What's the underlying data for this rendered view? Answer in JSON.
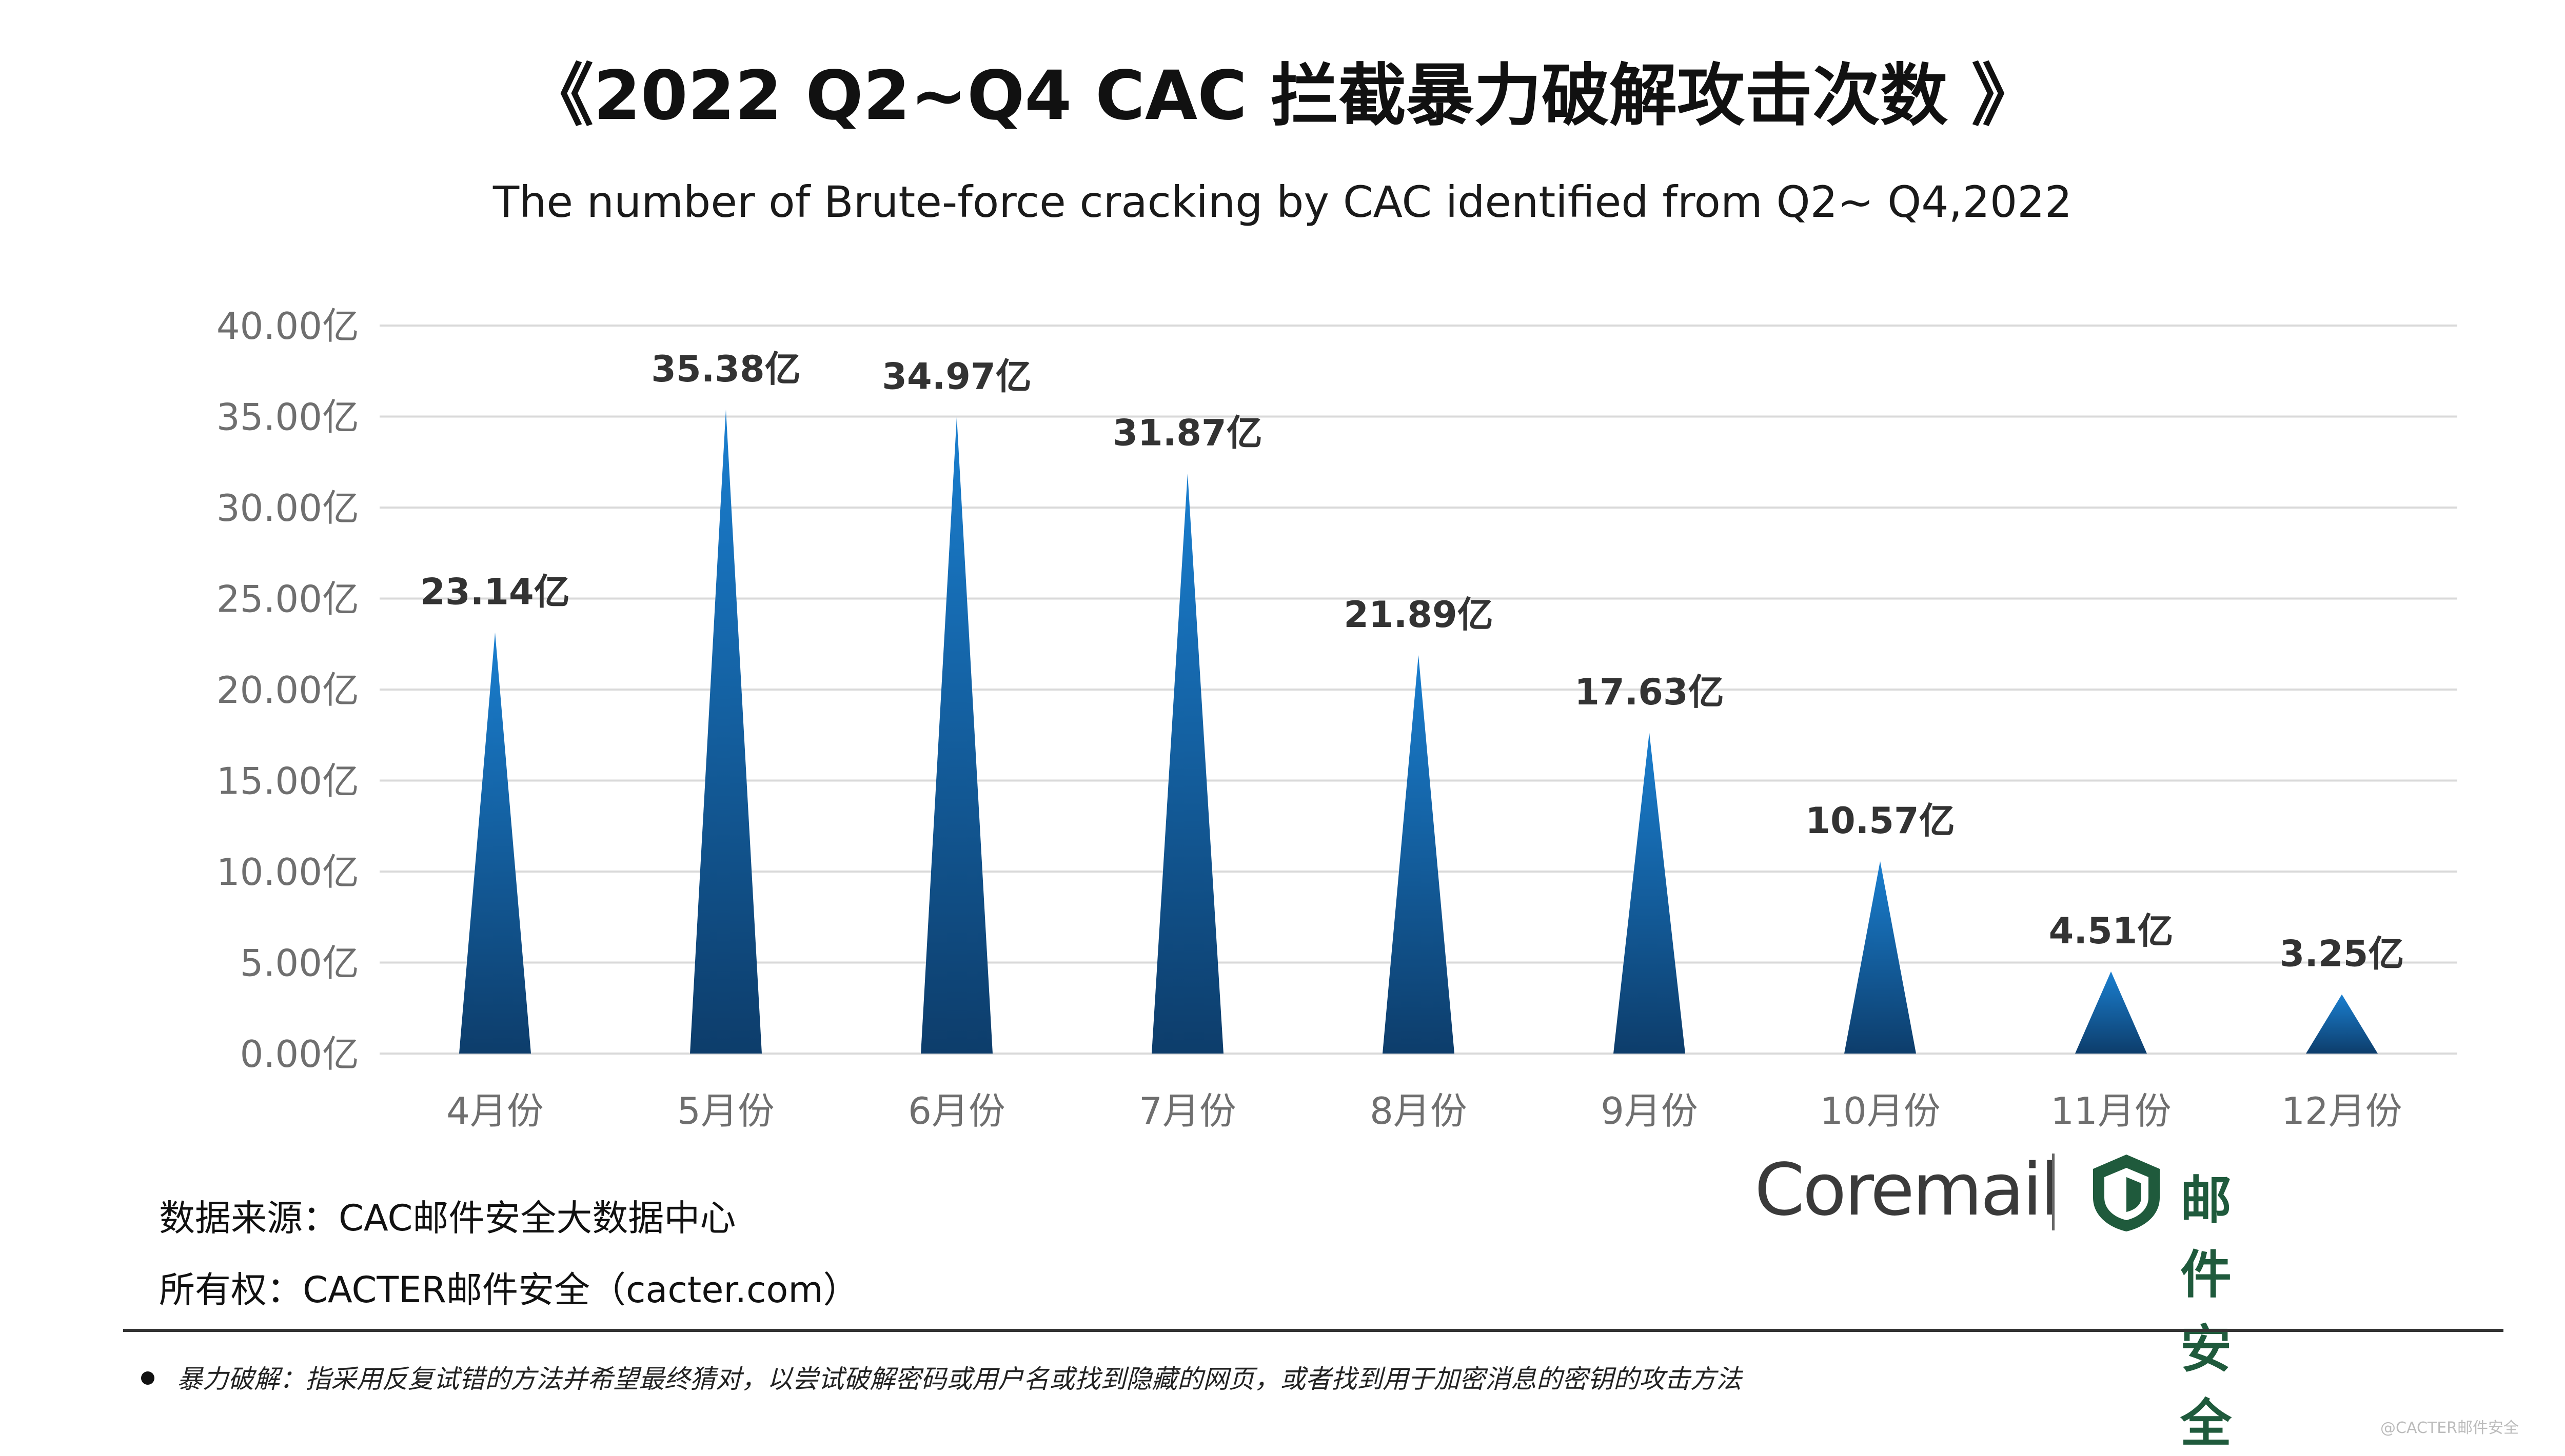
{
  "title": "《2022 Q2~Q4 CAC 拦截暴力破解攻击次数 》",
  "subtitle": "The number of Brute-force cracking by CAC identified from Q2~ Q4,2022",
  "chart_data": {
    "type": "bar",
    "bar_shape": "triangle",
    "categories": [
      "4月份",
      "5月份",
      "6月份",
      "7月份",
      "8月份",
      "9月份",
      "10月份",
      "11月份",
      "12月份"
    ],
    "values": [
      23.14,
      35.38,
      34.97,
      31.87,
      21.89,
      17.63,
      10.57,
      4.51,
      3.25
    ],
    "value_labels": [
      "23.14亿",
      "35.38亿",
      "34.97亿",
      "31.87亿",
      "21.89亿",
      "17.63亿",
      "10.57亿",
      "4.51亿",
      "3.25亿"
    ],
    "ylim": [
      0,
      40
    ],
    "yticks": [
      0,
      5,
      10,
      15,
      20,
      25,
      30,
      35,
      40
    ],
    "ytick_labels": [
      "0.00亿",
      "5.00亿",
      "10.00亿",
      "15.00亿",
      "20.00亿",
      "25.00亿",
      "30.00亿",
      "35.00亿",
      "40.00亿"
    ],
    "grid": true,
    "legend": "none",
    "colors": {
      "bar_top": "#1a7fd0",
      "bar_bottom": "#0d3d6b",
      "grid": "#d9d9d9"
    }
  },
  "source": {
    "data_source": "数据来源：CAC邮件安全大数据中心",
    "ownership": "所有权：CACTER邮件安全（cacter.com）"
  },
  "logo": {
    "coremail": "Coremail",
    "mail_security": "邮件安全",
    "shield_icon": "shield-icon",
    "brand_green": "#1f5a3c"
  },
  "footnote": "暴力破解：指采用反复试错的方法并希望最终猜对，以尝试破解密码或用户名或找到隐藏的网页，或者找到用于加密消息的密钥的攻击方法",
  "watermark": "@CACTER邮件安全"
}
